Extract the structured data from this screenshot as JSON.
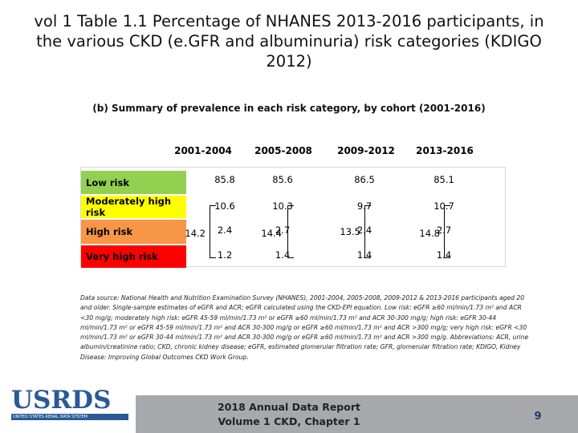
{
  "title": "vol 1 Table 1.1 Percentage of NHANES 2013-2016 participants, in the various CKD (e.GFR and albuminuria) risk categories (KDIGO 2012)",
  "subtitle": "(b) Summary of prevalence in each risk category, by cohort (2001-2016)",
  "table": {
    "columns": [
      "2001-2004",
      "2005-2008",
      "2009-2012",
      "2013-2016"
    ],
    "rows": [
      {
        "label": "Low risk",
        "color": "#92d050",
        "values": [
          "85.8",
          "85.6",
          "86.5",
          "85.1"
        ]
      },
      {
        "label": "Moderately high risk",
        "color": "#ffff00",
        "values": [
          "10.6",
          "10.3",
          "9.7",
          "10.7"
        ]
      },
      {
        "label": "High risk",
        "color": "#f79646",
        "values": [
          "2.4",
          "2.7",
          "2.4",
          "2.7"
        ]
      },
      {
        "label": "Very high risk",
        "color": "#ff0000",
        "values": [
          "1.2",
          "1.4",
          "1.4",
          "1.4"
        ]
      }
    ],
    "combined": [
      "14.2",
      "14.4",
      "13.5",
      "14.8"
    ]
  },
  "source_note": "Data source: National Health and Nutrition Examination Survey (NHANES), 2001-2004, 2005-2008, 2009-2012 & 2013-2016 participants aged 20 and older. Single-sample estimates of eGFR and ACR; eGFR calculated using the CKD-EPI equation. Low risk: eGFR ≥60 ml/min/1.73 m² and ACR <30 mg/g; moderately high risk: eGFR 45-59 ml/min/1.73 m² or eGFR ≥60 ml/min/1.73 m² and ACR 30-300 mg/g; high risk: eGFR 30-44 ml/min/1.73 m² or eGFR 45-59 ml/min/1.73 m² and ACR 30-300 mg/g or eGFR ≥60 ml/min/1.73 m² and ACR >300 mg/g; very high risk: eGFR <30 ml/min/1.73 m² or eGFR 30-44 ml/min/1.73 m² and ACR 30-300 mg/g or eGFR ≥60 ml/min/1.73 m² and ACR >300 mg/g. Abbreviations: ACR, urine albumin/creatinine ratio; CKD, chronic kidney disease; eGFR, estimated glomerular filtration rate; GFR, glomerular filtration rate; KDIGO, Kidney Disease: Improving Global Outcomes CKD Work Group.",
  "logo": {
    "text": "USRDS",
    "tagline": "UNITED STATES RENAL DATA SYSTEM",
    "color": "#2a5a96"
  },
  "footer": {
    "line1": "2018 Annual Data Report",
    "line2": "Volume 1 CKD, Chapter 1",
    "page": "9"
  }
}
